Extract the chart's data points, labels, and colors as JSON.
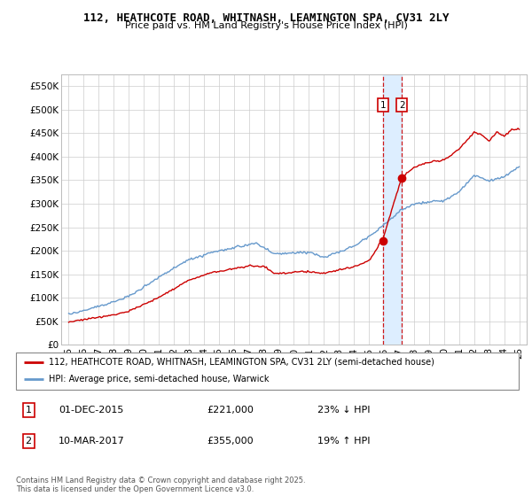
{
  "title1": "112, HEATHCOTE ROAD, WHITNASH, LEAMINGTON SPA, CV31 2LY",
  "title2": "Price paid vs. HM Land Registry's House Price Index (HPI)",
  "legend_line1": "112, HEATHCOTE ROAD, WHITNASH, LEAMINGTON SPA, CV31 2LY (semi-detached house)",
  "legend_line2": "HPI: Average price, semi-detached house, Warwick",
  "annotation1_date": "01-DEC-2015",
  "annotation1_price": "£221,000",
  "annotation1_pct": "23% ↓ HPI",
  "annotation2_date": "10-MAR-2017",
  "annotation2_price": "£355,000",
  "annotation2_pct": "19% ↑ HPI",
  "footer": "Contains HM Land Registry data © Crown copyright and database right 2025.\nThis data is licensed under the Open Government Licence v3.0.",
  "sale1_x": 2015.92,
  "sale1_y": 221000,
  "sale2_x": 2017.19,
  "sale2_y": 355000,
  "ylim": [
    0,
    575000
  ],
  "xlim_start": 1994.5,
  "xlim_end": 2025.5,
  "yticks": [
    0,
    50000,
    100000,
    150000,
    200000,
    250000,
    300000,
    350000,
    400000,
    450000,
    500000,
    550000
  ],
  "xticks": [
    1995,
    1996,
    1997,
    1998,
    1999,
    2000,
    2001,
    2002,
    2003,
    2004,
    2005,
    2006,
    2007,
    2008,
    2009,
    2010,
    2011,
    2012,
    2013,
    2014,
    2015,
    2016,
    2017,
    2018,
    2019,
    2020,
    2021,
    2022,
    2023,
    2024,
    2025
  ],
  "line_color_red": "#cc0000",
  "line_color_blue": "#6699cc",
  "shade_color": "#ddeeff",
  "grid_color": "#cccccc",
  "bg_color": "#ffffff"
}
